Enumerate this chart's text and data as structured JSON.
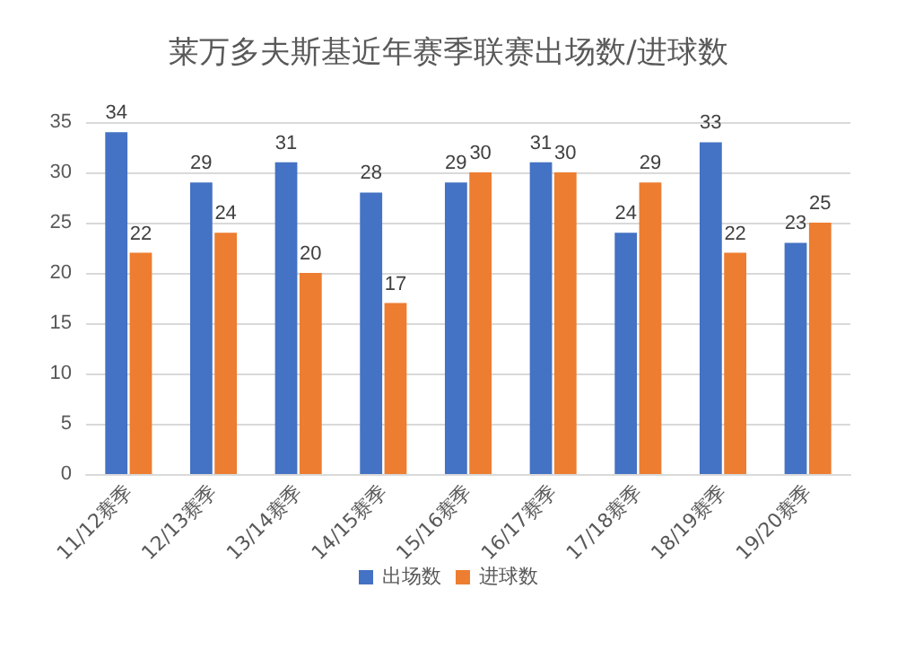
{
  "chart_data": {
    "type": "bar",
    "title": "莱万多夫斯基近年赛季联赛出场数/进球数",
    "categories": [
      "11/12赛季",
      "12/13赛季",
      "13/14赛季",
      "14/15赛季",
      "15/16赛季",
      "16/17赛季",
      "17/18赛季",
      "18/19赛季",
      "19/20赛季"
    ],
    "series": [
      {
        "name": "出场数",
        "color": "#4472c4",
        "values": [
          34,
          29,
          31,
          28,
          29,
          31,
          24,
          33,
          23
        ]
      },
      {
        "name": "进球数",
        "color": "#ed7d31",
        "values": [
          22,
          24,
          20,
          17,
          30,
          30,
          29,
          22,
          25
        ]
      }
    ],
    "ylim": [
      0,
      35
    ],
    "yticks": [
      0,
      5,
      10,
      15,
      20,
      25,
      30,
      35
    ],
    "grid": "y",
    "legend": "bottom",
    "data_labels": true
  }
}
